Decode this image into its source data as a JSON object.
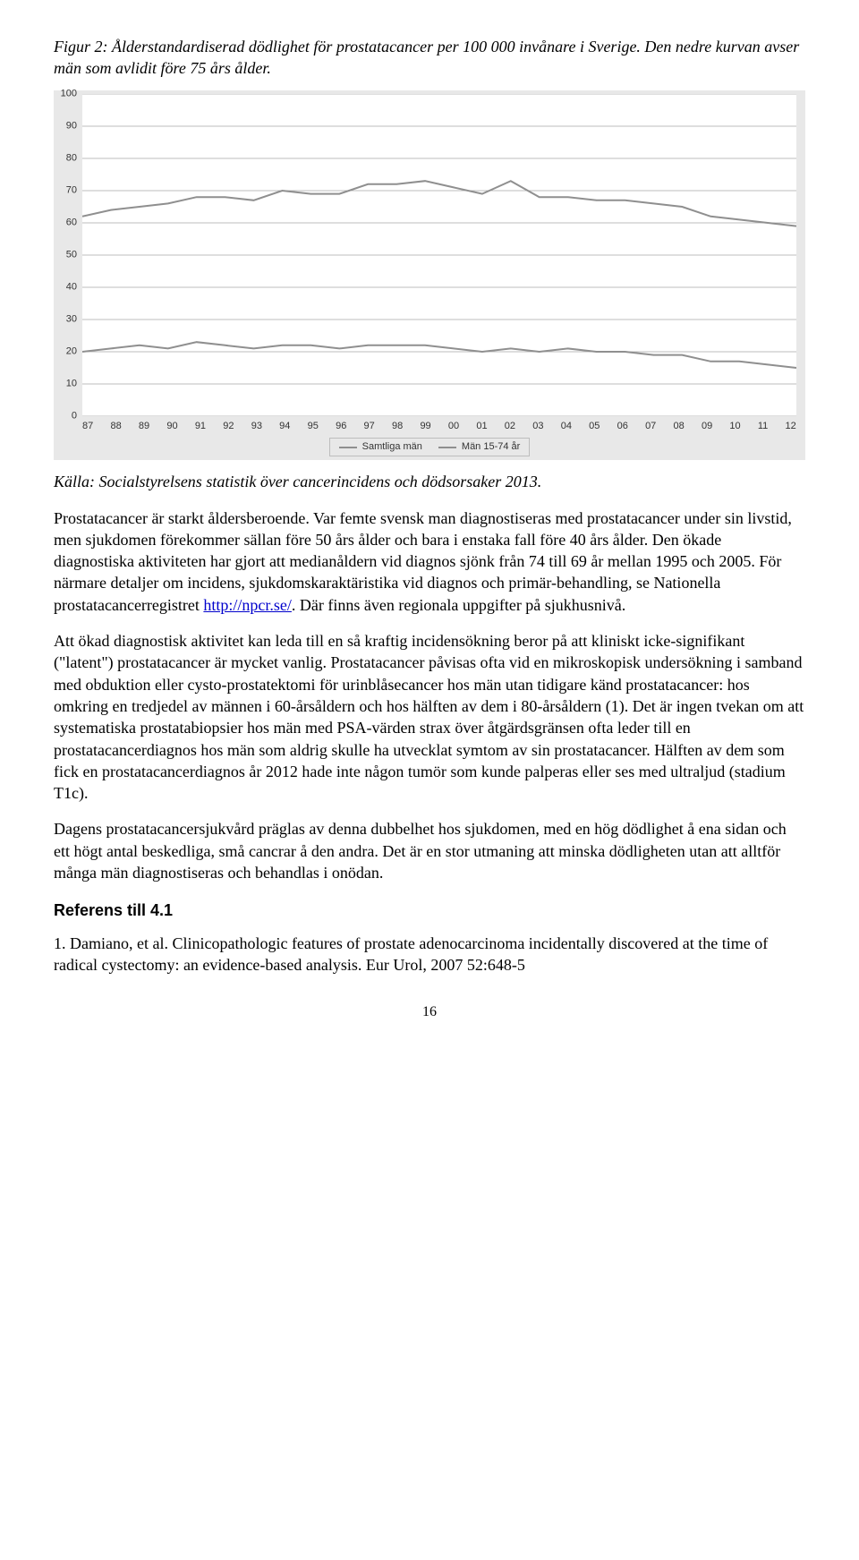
{
  "figure_caption": "Figur 2: Ålderstandardiserad dödlighet för prostatacancer per 100 000 invånare i Sverige. Den nedre kurvan avser män som avlidit före 75 års ålder.",
  "chart": {
    "type": "line",
    "background_color": "#e8e8e8",
    "plot_background": "#ffffff",
    "grid_color": "#bdbdbd",
    "line_color": "#8f8f8f",
    "line_width": 2,
    "ylim": [
      0,
      100
    ],
    "ytick_step": 10,
    "yticks": [
      0,
      10,
      20,
      30,
      40,
      50,
      60,
      70,
      80,
      90,
      100
    ],
    "x_categories": [
      "87",
      "88",
      "89",
      "90",
      "91",
      "92",
      "93",
      "94",
      "95",
      "96",
      "97",
      "98",
      "99",
      "00",
      "01",
      "02",
      "03",
      "04",
      "05",
      "06",
      "07",
      "08",
      "09",
      "10",
      "11",
      "12"
    ],
    "series": [
      {
        "name": "Samtliga män",
        "values": [
          62,
          64,
          65,
          66,
          68,
          68,
          67,
          70,
          69,
          69,
          72,
          72,
          73,
          71,
          69,
          73,
          68,
          68,
          67,
          67,
          66,
          65,
          62,
          61,
          60,
          59
        ]
      },
      {
        "name": "Män 15-74 år",
        "values": [
          20,
          21,
          22,
          21,
          23,
          22,
          21,
          22,
          22,
          21,
          22,
          22,
          22,
          21,
          20,
          21,
          20,
          21,
          20,
          20,
          19,
          19,
          17,
          17,
          16,
          15
        ]
      }
    ],
    "legend": [
      "Samtliga män",
      "Män 15-74 år"
    ],
    "label_font": "Arial",
    "label_fontsize": 11
  },
  "source_line": "Källa: Socialstyrelsens statistik över cancerincidens och dödsorsaker 2013.",
  "para1_a": "Prostatacancer är starkt åldersberoende. Var femte svensk man diagnostiseras med prostatacancer under sin livstid, men sjukdomen förekommer sällan före 50 års ålder och bara i enstaka fall före 40 års ålder. Den ökade diagnostiska aktiviteten har gjort att medianåldern vid diagnos sjönk från 74 till 69 år mellan 1995 och 2005. För närmare detaljer om incidens, sjukdomskaraktäristika vid diagnos och primär-behandling, se Nationella prostatacancerregistret ",
  "link1_text": "http://npcr.se/",
  "para1_b": ". Där finns även regionala uppgifter på sjukhusnivå.",
  "para2": "Att ökad diagnostisk aktivitet kan leda till en så kraftig incidensökning beror på att kliniskt icke-signifikant (\"latent\") prostatacancer är mycket vanlig. Prostatacancer påvisas ofta vid en mikroskopisk undersökning i samband med obduktion eller cysto-prostatektomi för urinblåsecancer hos män utan tidigare känd prostatacancer: hos omkring en tredjedel av männen i 60-årsåldern och hos hälften av dem i 80-årsåldern (1). Det är ingen tvekan om att systematiska prostatabiopsier hos män med PSA-värden strax över åtgärdsgränsen ofta leder till en prostatacancerdiagnos hos män som aldrig skulle ha utvecklat symtom av sin prostatacancer. Hälften av dem som fick en prostatacancerdiagnos år 2012 hade inte någon tumör som kunde palperas eller ses med ultraljud (stadium T1c).",
  "para3": "Dagens prostatacancersjukvård präglas av denna dubbelhet hos sjukdomen, med en hög dödlighet å ena sidan och ett högt antal beskedliga, små cancrar å den andra. Det är en stor utmaning att minska dödligheten utan att alltför många män diagnostiseras och behandlas i onödan.",
  "ref_heading": "Referens till 4.1",
  "ref_item": "1. Damiano, et al. Clinicopathologic features of prostate adenocarcinoma incidentally discovered at the time of radical cystectomy: an evidence-based analysis. Eur Urol, 2007 52:648-5",
  "page_num": "16"
}
